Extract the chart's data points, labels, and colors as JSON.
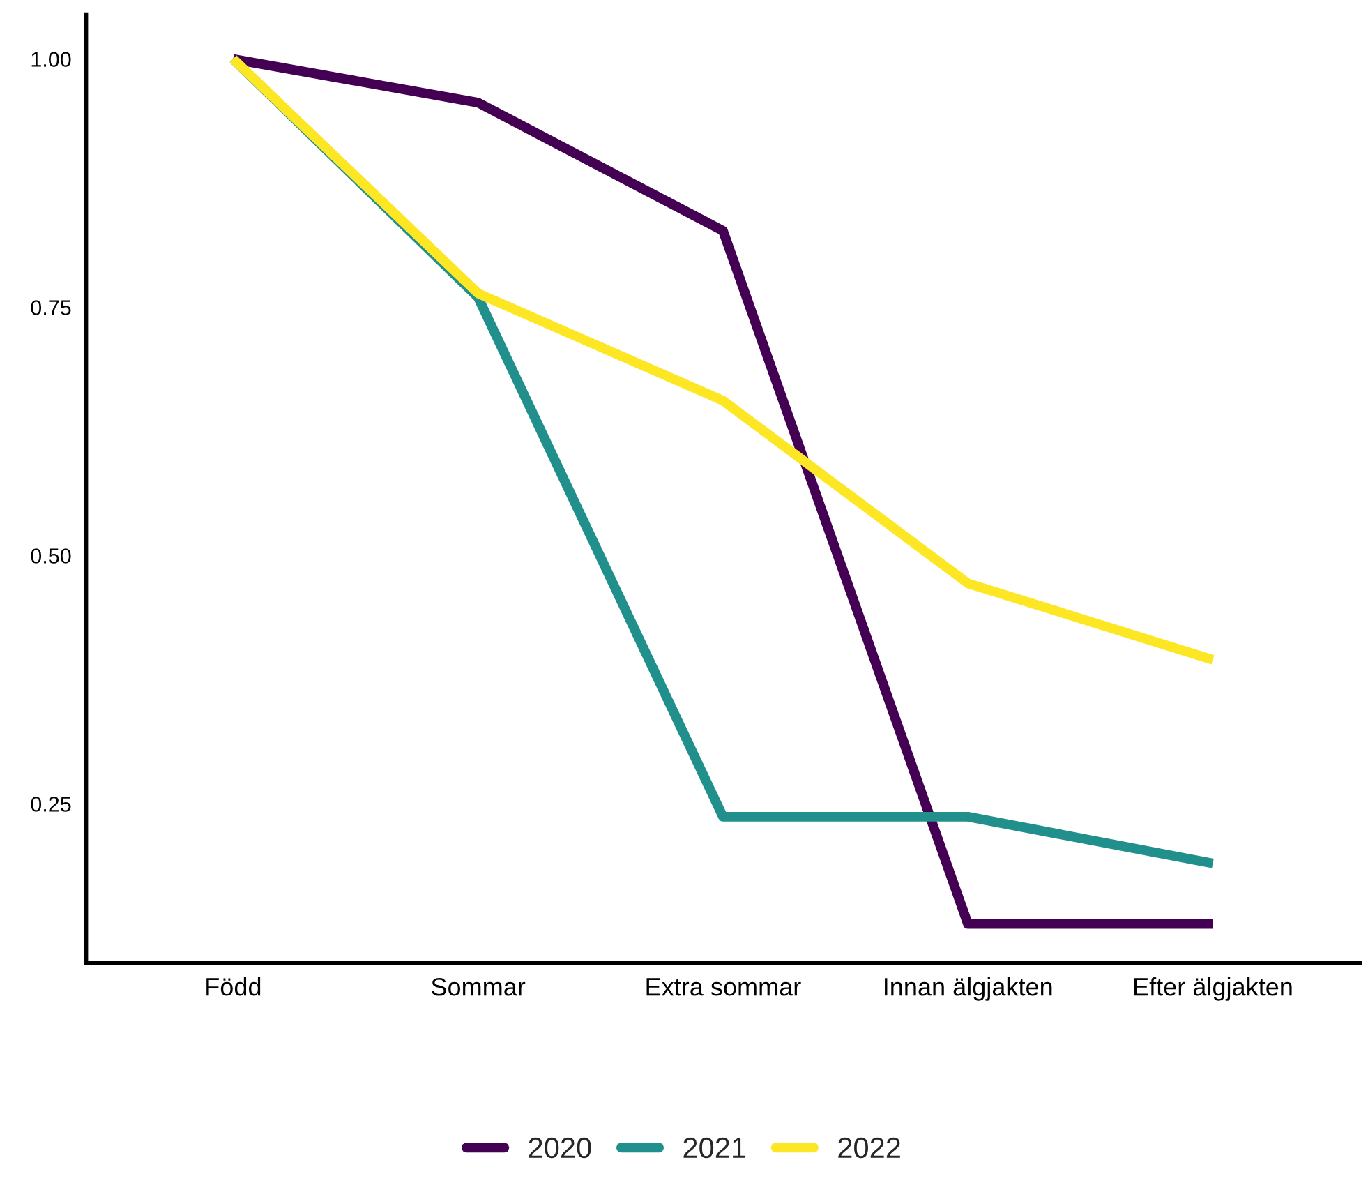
{
  "chart_data": {
    "type": "line",
    "categories": [
      "Född",
      "Sommar",
      "Extra sommar",
      "Innan älgjakten",
      "Efter älgjakten"
    ],
    "series": [
      {
        "name": "2020",
        "color": "#440154",
        "values": [
          1.0,
          0.956,
          0.827,
          0.129,
          0.129
        ]
      },
      {
        "name": "2021",
        "color": "#21908c",
        "values": [
          1.0,
          0.76,
          0.237,
          0.237,
          0.19
        ]
      },
      {
        "name": "2022",
        "color": "#fde725",
        "values": [
          1.0,
          0.764,
          0.656,
          0.472,
          0.395
        ]
      }
    ],
    "ylim": [
      0.09,
      1.045
    ],
    "yticks": [
      {
        "value": 0.25,
        "label": "0.25"
      },
      {
        "value": 0.5,
        "label": "0.50"
      },
      {
        "value": 0.75,
        "label": "0.75"
      },
      {
        "value": 1.0,
        "label": "1.00"
      }
    ],
    "grid": false,
    "legend": "bottom",
    "marker": "none",
    "line_style": "solid"
  }
}
